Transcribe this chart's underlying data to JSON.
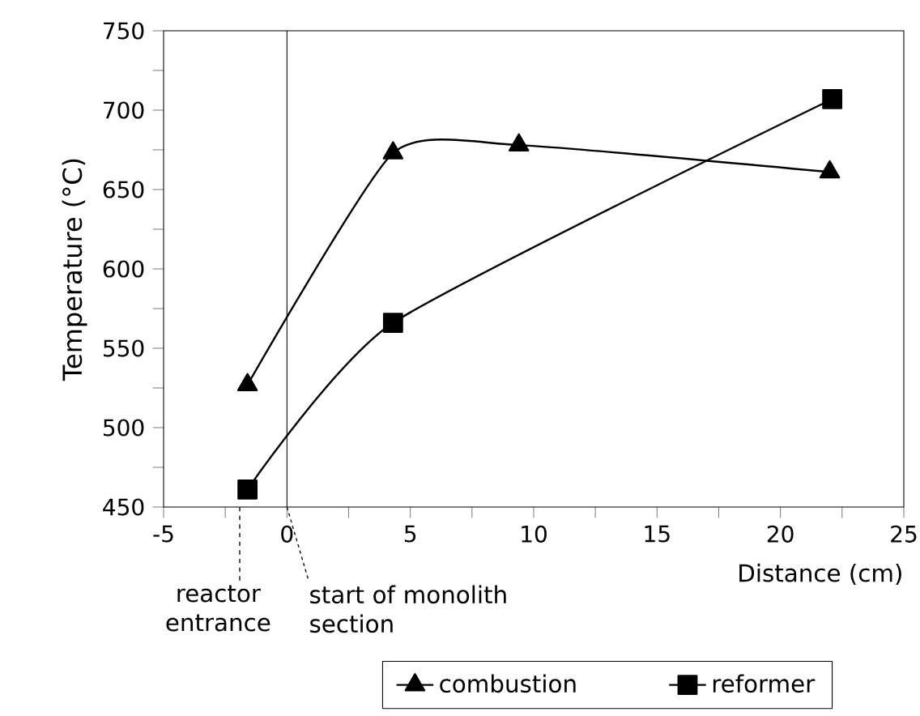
{
  "chart_data": {
    "type": "line",
    "xlabel": "Distance (cm)",
    "ylabel": "Temperature (°C)",
    "xlim": [
      -5,
      25
    ],
    "xticks": [
      -5,
      {
        "value": -2.5,
        "label": null
      },
      0,
      {
        "value": 2.5,
        "label": null
      },
      5,
      {
        "value": 7.5,
        "label": null
      },
      10,
      {
        "value": 12.5,
        "label": null
      },
      15,
      {
        "value": 17.5,
        "label": null
      },
      20,
      {
        "value": 22.5,
        "label": null
      },
      25
    ],
    "ylim": [
      450,
      750
    ],
    "yticks": [
      450,
      {
        "value": 475,
        "label": null
      },
      500,
      {
        "value": 525,
        "label": null
      },
      550,
      {
        "value": 575,
        "label": null
      },
      600,
      {
        "value": 625,
        "label": null
      },
      650,
      {
        "value": 675,
        "label": null
      },
      700,
      {
        "value": 725,
        "label": null
      },
      750
    ],
    "series": [
      {
        "name": "combustion",
        "color": "#000000",
        "marker": "triangle",
        "x": [
          -1.6,
          4.3,
          9.4,
          22.0
        ],
        "values": [
          527,
          673,
          678,
          661
        ]
      },
      {
        "name": "reformer",
        "color": "#000000",
        "marker": "square",
        "x": [
          -1.6,
          4.3,
          22.1
        ],
        "values": [
          461,
          566,
          707
        ]
      }
    ],
    "ref_lines": [
      {
        "axis": "x",
        "value": 0,
        "color": "#000000"
      }
    ],
    "annotations": [
      "reactor entrance",
      {
        "text": "start of monolith section",
        "x": 0,
        "y": 450
      }
    ],
    "legend": "bottom",
    "grid": false
  }
}
